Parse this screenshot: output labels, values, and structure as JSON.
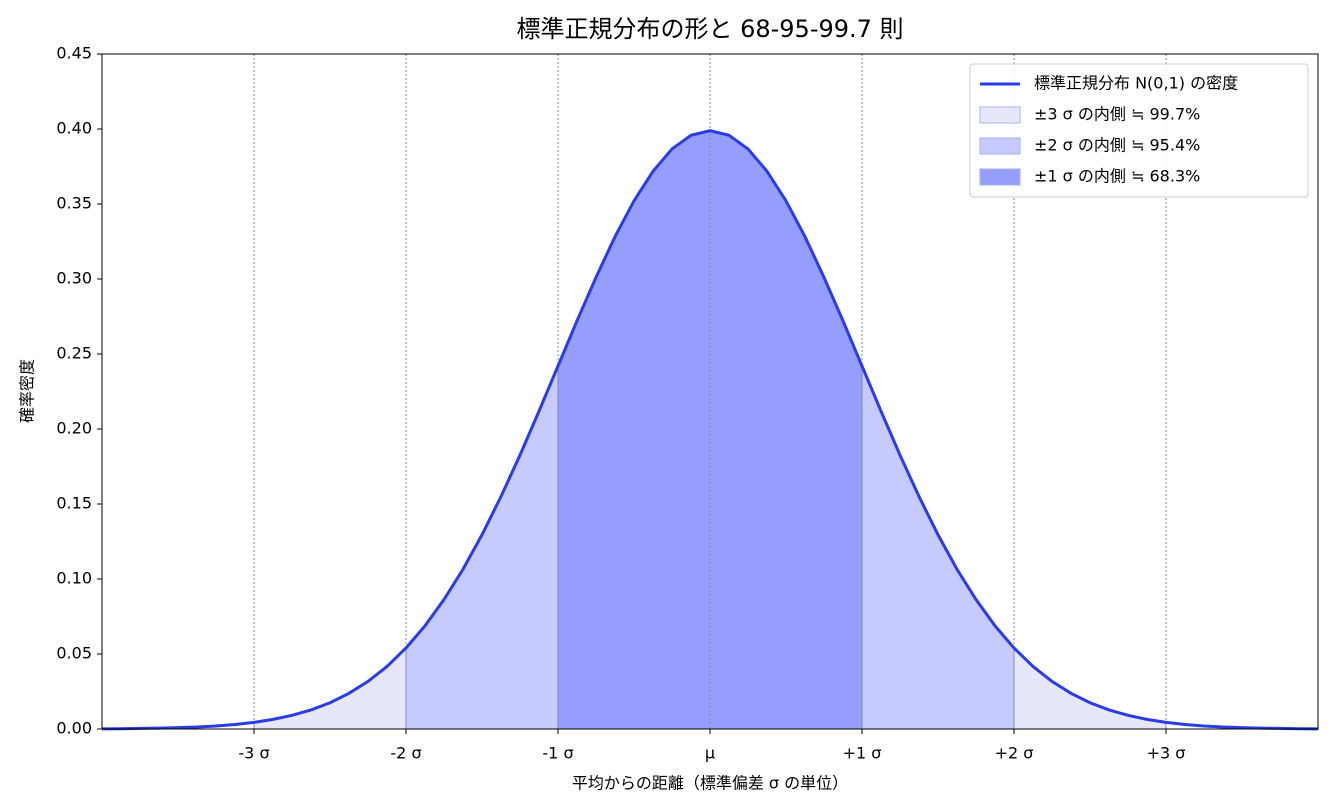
{
  "chart_data": {
    "type": "line",
    "title": "標準正規分布の形と 68-95-99.7 則",
    "xlabel": "平均からの距離（標準偏差 σ の単位）",
    "ylabel": "確率密度",
    "x": [
      -4,
      -3.875,
      -3.75,
      -3.625,
      -3.5,
      -3.375,
      -3.25,
      -3.125,
      -3,
      -2.875,
      -2.75,
      -2.625,
      -2.5,
      -2.375,
      -2.25,
      -2.125,
      -2,
      -1.875,
      -1.75,
      -1.625,
      -1.5,
      -1.375,
      -1.25,
      -1.125,
      -1,
      -0.875,
      -0.75,
      -0.625,
      -0.5,
      -0.375,
      -0.25,
      -0.125,
      0,
      0.125,
      0.25,
      0.375,
      0.5,
      0.625,
      0.75,
      0.875,
      1,
      1.125,
      1.25,
      1.375,
      1.5,
      1.625,
      1.75,
      1.875,
      2,
      2.125,
      2.25,
      2.375,
      2.5,
      2.625,
      2.75,
      2.875,
      3,
      3.125,
      3.25,
      3.375,
      3.5,
      3.625,
      3.75,
      3.875,
      4
    ],
    "series": [
      {
        "name": "標準正規分布 N(0,1) の密度",
        "color": "#2a3ce6",
        "values": [
          0.0001,
          0.0002,
          0.0004,
          0.0006,
          0.0009,
          0.0013,
          0.002,
          0.003,
          0.0044,
          0.0064,
          0.0091,
          0.0127,
          0.0175,
          0.0238,
          0.0317,
          0.0417,
          0.054,
          0.0688,
          0.0863,
          0.1065,
          0.1295,
          0.155,
          0.1826,
          0.2119,
          0.242,
          0.2721,
          0.3011,
          0.3282,
          0.3521,
          0.3718,
          0.3867,
          0.3958,
          0.3989,
          0.3958,
          0.3867,
          0.3718,
          0.3521,
          0.3282,
          0.3011,
          0.2721,
          0.242,
          0.2119,
          0.1826,
          0.155,
          0.1295,
          0.1065,
          0.0863,
          0.0688,
          0.054,
          0.0417,
          0.0317,
          0.0238,
          0.0175,
          0.0127,
          0.0091,
          0.0064,
          0.0044,
          0.003,
          0.002,
          0.0013,
          0.0009,
          0.0006,
          0.0004,
          0.0002,
          0.0001
        ]
      }
    ],
    "bands": [
      {
        "name": "±3 σ の内側 ≒ 99.7%",
        "color": "#e7e7fc",
        "range": [
          -3,
          3
        ]
      },
      {
        "name": "±2 σ の内側 ≒ 95.4%",
        "color": "#c6cafd",
        "range": [
          -2,
          2
        ]
      },
      {
        "name": "±1 σ の内側 ≒ 68.3%",
        "color": "#959dfd",
        "range": [
          -1,
          1
        ]
      }
    ],
    "xlim": [
      -4,
      4
    ],
    "xticks": [
      {
        "value": -3,
        "label": "-3 σ"
      },
      {
        "value": -2,
        "label": "-2 σ"
      },
      {
        "value": -1,
        "label": "-1 σ"
      },
      {
        "value": 0,
        "label": "μ"
      },
      {
        "value": 1,
        "label": "+1 σ"
      },
      {
        "value": 2,
        "label": "+2 σ"
      },
      {
        "value": 3,
        "label": "+3 σ"
      }
    ],
    "ylim": [
      0,
      0.45
    ],
    "yticks": [
      {
        "value": 0,
        "label": "0.00"
      },
      {
        "value": 0.05,
        "label": "0.05"
      },
      {
        "value": 0.1,
        "label": "0.10"
      },
      {
        "value": 0.15,
        "label": "0.15"
      },
      {
        "value": 0.2,
        "label": "0.20"
      },
      {
        "value": 0.25,
        "label": "0.25"
      },
      {
        "value": 0.3,
        "label": "0.30"
      },
      {
        "value": 0.35,
        "label": "0.35"
      },
      {
        "value": 0.4,
        "label": "0.40"
      },
      {
        "value": 0.45,
        "label": "0.45"
      }
    ],
    "grid": "x",
    "legend": "upper right"
  }
}
